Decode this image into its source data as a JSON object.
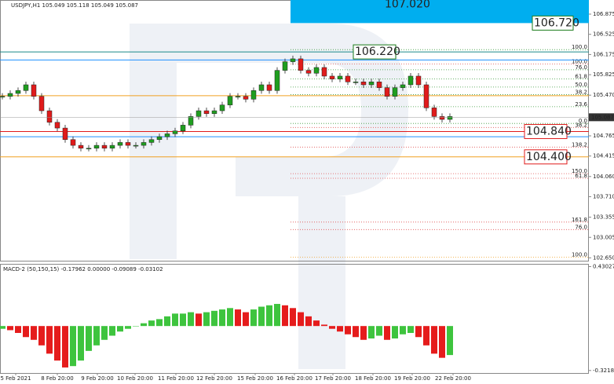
{
  "chart_data": [
    {
      "type": "candlestick",
      "title": "USDJPY,H1  105.049 105.118 105.049 105.087",
      "color_up": "#1f9e1f",
      "color_down": "#e01b1b",
      "x": [
        0,
        1,
        2,
        3,
        4,
        5,
        6,
        7,
        8,
        9,
        10,
        11,
        12,
        13,
        14,
        15,
        16,
        17,
        18,
        19,
        20,
        21,
        22,
        23,
        24,
        25,
        26,
        27,
        28,
        29,
        30,
        31,
        32,
        33,
        34,
        35,
        36,
        37,
        38,
        39,
        40,
        41,
        42,
        43,
        44,
        45,
        46,
        47,
        48,
        49,
        50,
        51,
        52,
        53,
        54,
        55,
        56,
        57
      ],
      "values": [
        105.45,
        105.5,
        105.55,
        105.65,
        105.45,
        105.2,
        105.0,
        104.9,
        104.7,
        104.6,
        104.55,
        104.55,
        104.6,
        104.55,
        104.6,
        104.65,
        104.6,
        104.6,
        104.65,
        104.7,
        104.75,
        104.8,
        104.85,
        104.95,
        105.1,
        105.2,
        105.15,
        105.2,
        105.3,
        105.45,
        105.45,
        105.4,
        105.55,
        105.65,
        105.55,
        105.9,
        106.05,
        106.1,
        105.9,
        105.85,
        105.95,
        105.8,
        105.75,
        105.8,
        105.7,
        105.7,
        105.65,
        105.7,
        105.6,
        105.45,
        105.6,
        105.65,
        105.8,
        105.65,
        105.25,
        105.1,
        105.05,
        105.1
      ],
      "xlim": [
        -0.3,
        74.7
      ],
      "xticks": [
        {
          "value": 1.7,
          "label": "5 Feb 2021"
        },
        {
          "value": 7,
          "label": "8 Feb 20:00"
        },
        {
          "value": 12.1,
          "label": "9 Feb 20:00"
        },
        {
          "value": 16.9,
          "label": "10 Feb 20:00"
        },
        {
          "value": 22.1,
          "label": "11 Feb 20:00"
        },
        {
          "value": 27,
          "label": "12 Feb 20:00"
        },
        {
          "value": 32.2,
          "label": "15 Feb 20:00"
        },
        {
          "value": 37.2,
          "label": "16 Feb 20:00"
        },
        {
          "value": 42.1,
          "label": "17 Feb 20:00"
        },
        {
          "value": 47.2,
          "label": "18 Feb 20:00"
        },
        {
          "value": 52.2,
          "label": "19 Feb 20:00"
        },
        {
          "value": 57.4,
          "label": "22 Feb 20:00"
        }
      ],
      "ylim": [
        102.6,
        107.12
      ],
      "yticks": [
        {
          "value": 106.875,
          "label": "106.875"
        },
        {
          "value": 106.525,
          "label": "106.525"
        },
        {
          "value": 106.175,
          "label": "106.175"
        },
        {
          "value": 105.825,
          "label": "105.825"
        },
        {
          "value": 105.47,
          "label": "105.470"
        },
        {
          "value": 104.765,
          "label": "104.765"
        },
        {
          "value": 104.415,
          "label": "104.415"
        },
        {
          "value": 104.06,
          "label": "104.060"
        },
        {
          "value": 103.71,
          "label": "103.710"
        },
        {
          "value": 103.355,
          "label": "103.355"
        },
        {
          "value": 103.005,
          "label": "103.005"
        },
        {
          "value": 102.65,
          "label": "102.650"
        }
      ],
      "last_price": {
        "value": 105.087,
        "label": "105.087"
      },
      "zone": {
        "top": 107.02,
        "bottom": 106.72,
        "color": "#00aeef",
        "top_label": "107.020",
        "bottom_label": "106.720"
      },
      "levels": [
        {
          "value": 106.22,
          "label": "106.220",
          "color": "#1a8a8a",
          "text_color": "#1a7a1a"
        },
        {
          "value": 104.84,
          "label": "104.840",
          "color": "#e01b1b",
          "text_color": "#e01b1b"
        },
        {
          "value": 104.4,
          "label": "104.400",
          "color": "#f0a020",
          "text_color": "#e01b1b"
        }
      ],
      "lines": [
        {
          "value": 106.08,
          "color": "#1e90ff"
        },
        {
          "value": 104.75,
          "color": "#1e90ff"
        },
        {
          "value": 105.46,
          "color": "#f0a020"
        }
      ],
      "fibs": [
        {
          "value": 106.26,
          "label": "100.0",
          "color": "#3a9a3a"
        },
        {
          "value": 106.01,
          "label": "100.0",
          "color": "#e05050"
        },
        {
          "value": 105.91,
          "label": "76.0",
          "color": "#3a9a3a"
        },
        {
          "value": 105.75,
          "label": "61.8",
          "color": "#3a9a3a"
        },
        {
          "value": 105.61,
          "label": "50.0",
          "color": "#3a9a3a"
        },
        {
          "value": 105.48,
          "label": "38.2",
          "color": "#3a9a3a"
        },
        {
          "value": 105.27,
          "label": "23.6",
          "color": "#3a9a3a"
        },
        {
          "value": 104.98,
          "label": "0.0",
          "color": "#3a9a3a"
        },
        {
          "value": 104.91,
          "label": "38.2",
          "color": "#e05050"
        },
        {
          "value": 104.57,
          "label": "138.2",
          "color": "#e05050"
        },
        {
          "value": 104.11,
          "label": "150.0",
          "color": "#e05050"
        },
        {
          "value": 104.03,
          "label": "61.8",
          "color": "#e05050"
        },
        {
          "value": 103.27,
          "label": "161.8",
          "color": "#e05050"
        },
        {
          "value": 103.14,
          "label": "76.0",
          "color": "#e05050"
        },
        {
          "value": 102.66,
          "label": "100.0",
          "color": "#f0a020"
        }
      ]
    },
    {
      "type": "bar",
      "title": "MACD-2 (50,150,15) -0.17962 0.00000 -0.09089 -0.03102",
      "color_up": "#3ec43e",
      "color_down": "#e51c1c",
      "values": [
        -0.02,
        -0.03,
        -0.05,
        -0.08,
        -0.1,
        -0.14,
        -0.2,
        -0.25,
        -0.3,
        -0.29,
        -0.25,
        -0.18,
        -0.14,
        -0.1,
        -0.07,
        -0.04,
        -0.02,
        0.0,
        0.02,
        0.04,
        0.05,
        0.07,
        0.09,
        0.09,
        0.1,
        0.09,
        0.1,
        0.11,
        0.12,
        0.13,
        0.12,
        0.1,
        0.12,
        0.14,
        0.15,
        0.16,
        0.15,
        0.13,
        0.1,
        0.07,
        0.04,
        0.01,
        -0.02,
        -0.04,
        -0.06,
        -0.08,
        -0.1,
        -0.09,
        -0.07,
        -0.1,
        -0.09,
        -0.06,
        -0.05,
        -0.08,
        -0.14,
        -0.2,
        -0.23,
        -0.21
      ],
      "ylim": [
        -0.34,
        0.45
      ],
      "yticks": [
        {
          "value": 0.43027,
          "label": "0.43027"
        },
        {
          "value": -0.32184,
          "label": "-0.32184"
        }
      ]
    }
  ]
}
